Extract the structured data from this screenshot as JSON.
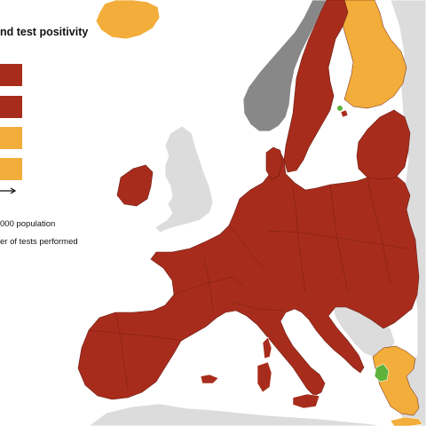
{
  "legend": {
    "title": "nd test positivity",
    "notes": [
      "000 population",
      "er of tests performed"
    ],
    "swatch_colors": [
      "#a82c1c",
      "#a82c1c",
      "#f2ad3a",
      "#f2ad3a"
    ]
  },
  "colors": {
    "sea": "#ffffff",
    "red": "#a82c1c",
    "orange": "#f2ad3a",
    "grey": "#888888",
    "light_grey": "#dcdcdc",
    "green": "#5db33a",
    "border": "#6b1a10"
  }
}
